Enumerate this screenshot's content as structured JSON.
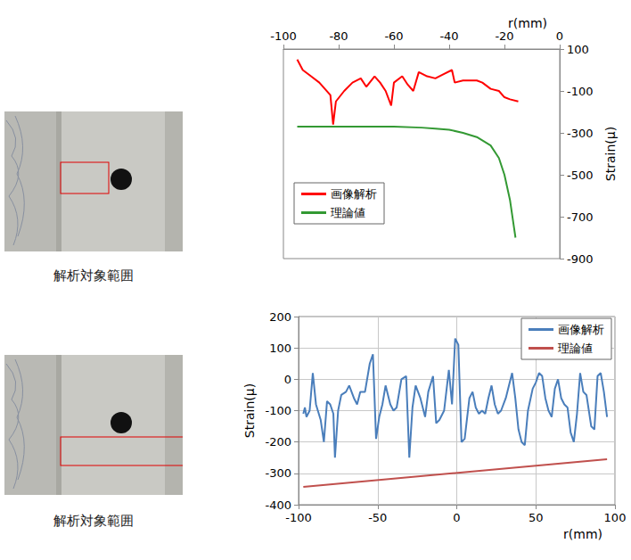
{
  "captions": [
    "解析対象範囲",
    "解析対象範囲"
  ],
  "chart_data": [
    {
      "type": "line",
      "x_label": "r(mm)",
      "y_label": "Strain(μ)",
      "xlim": [
        -100,
        0
      ],
      "xticks": [
        -100,
        -80,
        -60,
        -40,
        -20,
        0
      ],
      "ylim": [
        -900,
        100
      ],
      "yticks": [
        -900,
        -700,
        -500,
        -300,
        -100,
        100
      ],
      "grid": false,
      "legend": "lower left",
      "series": [
        {
          "name": "画像解析",
          "color": "#ff0000",
          "x": [
            -95,
            -93,
            -90,
            -87,
            -85,
            -83,
            -82,
            -81,
            -78,
            -75,
            -72,
            -70,
            -67,
            -65,
            -63,
            -61,
            -60,
            -57,
            -55,
            -53,
            -51,
            -48,
            -45,
            -42,
            -39,
            -38,
            -35,
            -30,
            -28,
            -25,
            -22,
            -20,
            -18,
            -15
          ],
          "values": [
            50,
            0,
            -30,
            -60,
            -90,
            -120,
            -260,
            -150,
            -100,
            -60,
            -40,
            -80,
            -30,
            -60,
            -100,
            -170,
            -60,
            -30,
            -70,
            -100,
            -10,
            -30,
            -40,
            -20,
            0,
            -60,
            -50,
            -50,
            -60,
            -90,
            -100,
            -130,
            -140,
            -150
          ]
        },
        {
          "name": "理論値",
          "color": "#339933",
          "x": [
            -95,
            -80,
            -70,
            -60,
            -50,
            -45,
            -40,
            -35,
            -30,
            -25,
            -22,
            -20,
            -18,
            -16
          ],
          "values": [
            -270,
            -270,
            -270,
            -270,
            -275,
            -280,
            -285,
            -300,
            -320,
            -360,
            -420,
            -500,
            -620,
            -800
          ]
        }
      ]
    },
    {
      "type": "line",
      "x_label": "r(mm)",
      "y_label": "Strain(μ)",
      "xlim": [
        -100,
        100
      ],
      "xticks": [
        -100,
        -50,
        0,
        50,
        100
      ],
      "ylim": [
        -400,
        200
      ],
      "yticks": [
        -400,
        -300,
        -200,
        -100,
        0,
        100,
        200
      ],
      "grid": true,
      "legend": "upper right",
      "series": [
        {
          "name": "画像解析",
          "color": "#4a7ebb",
          "x": [
            -97,
            -96,
            -95,
            -93,
            -91,
            -89,
            -86,
            -84,
            -82,
            -80,
            -78,
            -77,
            -75,
            -73,
            -70,
            -68,
            -65,
            -63,
            -61,
            -58,
            -55,
            -53,
            -51,
            -49,
            -47,
            -45,
            -42,
            -40,
            -38,
            -35,
            -32,
            -30,
            -28,
            -26,
            -23,
            -20,
            -18,
            -15,
            -13,
            -11,
            -8,
            -5,
            -3,
            -1,
            1,
            3,
            5,
            8,
            10,
            12,
            14,
            16,
            18,
            20,
            22,
            24,
            26,
            28,
            31,
            33,
            35,
            37,
            39,
            41,
            43,
            45,
            48,
            50,
            52,
            54,
            56,
            58,
            60,
            62,
            64,
            66,
            68,
            70,
            72,
            74,
            76,
            78,
            80,
            82,
            85,
            87,
            89,
            91,
            93,
            95
          ],
          "values": [
            -110,
            -90,
            -120,
            -100,
            20,
            -80,
            -130,
            -200,
            -70,
            -80,
            -110,
            -250,
            -100,
            -50,
            -40,
            -20,
            -60,
            -80,
            -40,
            -40,
            50,
            80,
            -190,
            -120,
            -80,
            -20,
            -80,
            -100,
            -90,
            0,
            10,
            -250,
            -90,
            -20,
            -60,
            -120,
            -40,
            10,
            -140,
            -130,
            -100,
            30,
            -80,
            130,
            110,
            -200,
            -190,
            -60,
            -40,
            -90,
            -110,
            -100,
            -110,
            -60,
            -20,
            -80,
            -110,
            -100,
            -60,
            -20,
            20,
            -60,
            -160,
            -200,
            -210,
            -100,
            -30,
            -10,
            20,
            10,
            -60,
            -100,
            -120,
            -30,
            0,
            -60,
            -80,
            -90,
            -170,
            -200,
            -110,
            20,
            -40,
            -50,
            -150,
            -160,
            10,
            20,
            -40,
            -120
          ]
        },
        {
          "name": "理論値",
          "color": "#c0504d",
          "x": [
            -97,
            95
          ],
          "values": [
            -343,
            -255
          ]
        }
      ]
    }
  ]
}
